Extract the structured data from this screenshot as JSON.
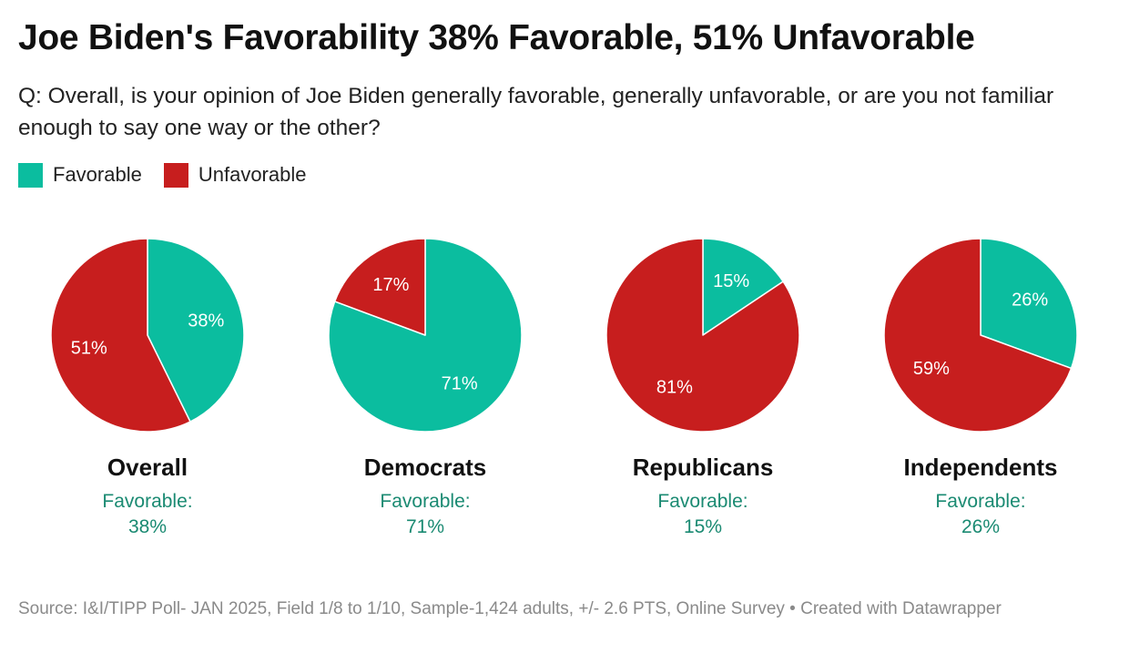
{
  "colors": {
    "favorable": "#0bbd9f",
    "unfavorable": "#c71e1e",
    "caption": "#1a8a72"
  },
  "header": {
    "title": "Joe Biden's Favorability 38% Favorable, 51% Unfavorable",
    "subtitle": "Q: Overall, is your opinion of Joe Biden generally favorable, generally unfavorable, or are you not familiar enough to say one way or the other?"
  },
  "legend": {
    "favorable": "Favorable",
    "unfavorable": "Unfavorable"
  },
  "chart_data": [
    {
      "type": "pie",
      "title": "Overall",
      "caption_label": "Favorable:",
      "caption_value": "38%",
      "slices": [
        {
          "name": "Favorable",
          "value": 38,
          "label": "38%"
        },
        {
          "name": "Unfavorable",
          "value": 51,
          "label": "51%"
        }
      ]
    },
    {
      "type": "pie",
      "title": "Democrats",
      "caption_label": "Favorable:",
      "caption_value": "71%",
      "slices": [
        {
          "name": "Favorable",
          "value": 71,
          "label": "71%"
        },
        {
          "name": "Unfavorable",
          "value": 17,
          "label": "17%"
        }
      ]
    },
    {
      "type": "pie",
      "title": "Republicans",
      "caption_label": "Favorable:",
      "caption_value": "15%",
      "slices": [
        {
          "name": "Favorable",
          "value": 15,
          "label": "15%"
        },
        {
          "name": "Unfavorable",
          "value": 81,
          "label": "81%"
        }
      ]
    },
    {
      "type": "pie",
      "title": "Independents",
      "caption_label": "Favorable:",
      "caption_value": "26%",
      "slices": [
        {
          "name": "Favorable",
          "value": 26,
          "label": "26%"
        },
        {
          "name": "Unfavorable",
          "value": 59,
          "label": "59%"
        }
      ]
    }
  ],
  "footer": {
    "source": "Source: I&I/TIPP Poll- JAN 2025, Field 1/8 to 1/10, Sample-1,424 adults, +/- 2.6 PTS, Online Survey • Created with Datawrapper"
  }
}
